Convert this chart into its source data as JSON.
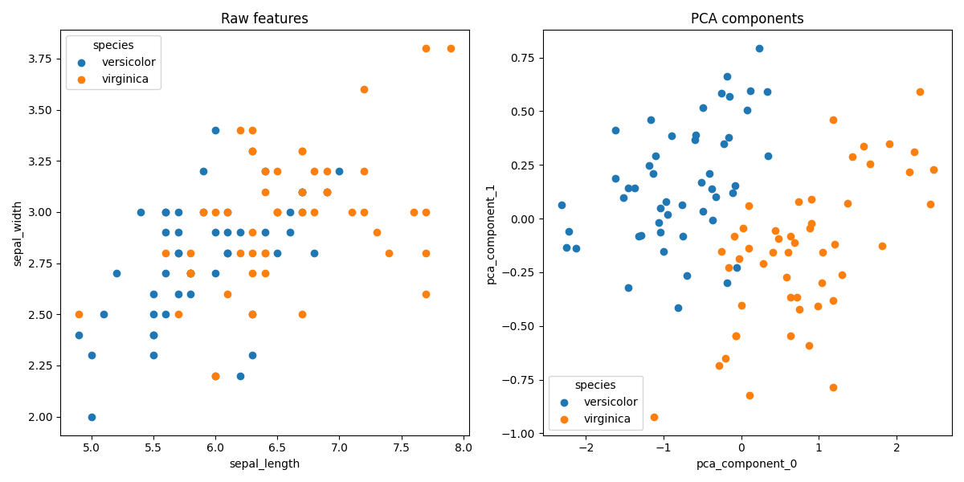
{
  "title_left": "Raw features",
  "title_right": "PCA components",
  "xlabel_left": "sepal_length",
  "ylabel_left": "sepal_width",
  "xlabel_right": "pca_component_0",
  "ylabel_right": "pca_component_1",
  "legend_title": "species",
  "species": [
    "versicolor",
    "virginica"
  ],
  "colors": {
    "versicolor": "#1f77b4",
    "virginica": "#ff7f0e"
  },
  "marker_size": 36,
  "legend_loc_left": "upper left",
  "legend_loc_right": "lower left"
}
